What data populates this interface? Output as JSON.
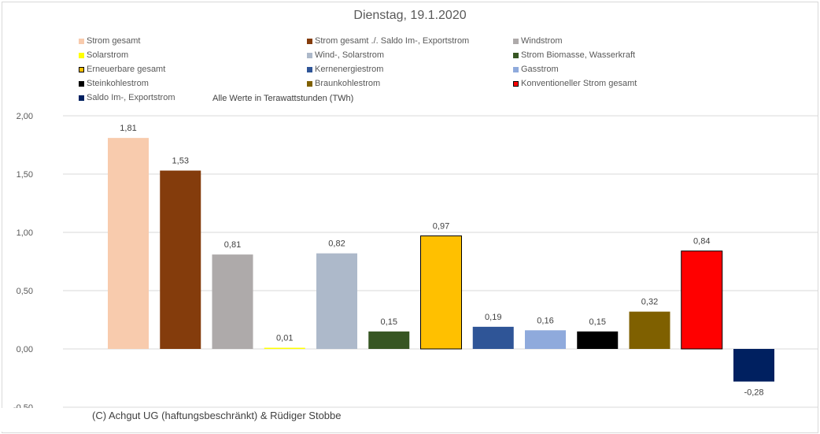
{
  "chart_data": {
    "type": "bar",
    "title": "Dienstag, 19.1.2020",
    "note": "Alle Werte in Terawattstunden (TWh)",
    "copyright": "(C) Achgut UG (haftungsbeschränkt) & Rüdiger Stobbe",
    "ylim": [
      -0.5,
      2.0
    ],
    "yticks": [
      "2,00",
      "1,50",
      "1,00",
      "0,50",
      "0,00",
      "-0,50"
    ],
    "ytick_values": [
      2.0,
      1.5,
      1.0,
      0.5,
      0.0,
      -0.5
    ],
    "grid": "horizontal",
    "legend_position": "top",
    "categories": [
      "Strom gesamt",
      "Strom gesamt ./. Saldo Im-, Exportstrom",
      "Windstrom",
      "Solarstrom",
      "Wind-, Solarstrom",
      "Strom Biomasse, Wasserkraft",
      "Erneuerbare gesamt",
      "Kernenergiestrom",
      "Gasstrom",
      "Steinkohlestrom",
      "Braunkohlestrom",
      "Konventioneller Strom gesamt",
      "Saldo Im-, Exportstrom"
    ],
    "values": [
      1.81,
      1.53,
      0.81,
      0.01,
      0.82,
      0.15,
      0.97,
      0.19,
      0.16,
      0.15,
      0.32,
      0.84,
      -0.28
    ],
    "labels": [
      "1,81",
      "1,53",
      "0,81",
      "0,01",
      "0,82",
      "0,15",
      "0,97",
      "0,19",
      "0,16",
      "0,15",
      "0,32",
      "0,84",
      "-0,28"
    ],
    "colors": [
      "#f8cbad",
      "#843c0c",
      "#aeaaaa",
      "#ffff00",
      "#adb9ca",
      "#375623",
      "#ffc000",
      "#2f5597",
      "#8faadc",
      "#000000",
      "#7f6000",
      "#ff0000",
      "#002060"
    ],
    "outlined": [
      false,
      false,
      false,
      false,
      false,
      false,
      true,
      false,
      false,
      false,
      false,
      true,
      false
    ]
  }
}
